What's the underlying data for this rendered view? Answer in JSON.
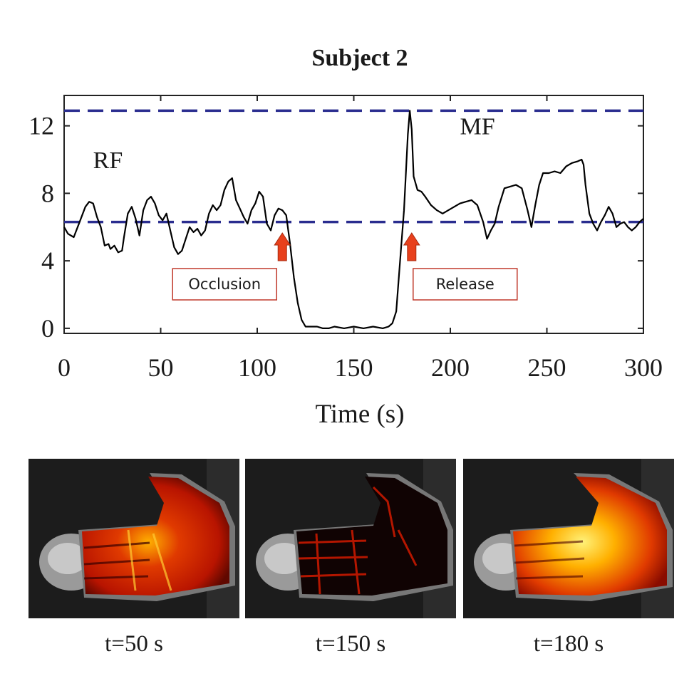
{
  "chart_data": {
    "type": "line",
    "title": "Subject 2",
    "xlabel": "Time (s)",
    "ylabel": "",
    "xlim": [
      0,
      300
    ],
    "ylim": [
      -0.3,
      13.8
    ],
    "xticks": [
      0,
      50,
      100,
      150,
      200,
      250,
      300
    ],
    "yticks": [
      0,
      4,
      8,
      12
    ],
    "grid": false,
    "series": [
      {
        "x": [
          0,
          2,
          5,
          8,
          11,
          13,
          15,
          17,
          19,
          21,
          23,
          24,
          26,
          28,
          30,
          31,
          33,
          35,
          37,
          39,
          41,
          43,
          45,
          47,
          49,
          51,
          53,
          55,
          57,
          59,
          61,
          63,
          65,
          67,
          69,
          71,
          73,
          75,
          77,
          79,
          81,
          83,
          85,
          87,
          89,
          91,
          93,
          95,
          97,
          99,
          101,
          103,
          105,
          107,
          109,
          111,
          113,
          115,
          117,
          119,
          121,
          123,
          125,
          128,
          131,
          134,
          137,
          140,
          145,
          150,
          155,
          160,
          165,
          168,
          170,
          172,
          174,
          176,
          178,
          179,
          180,
          181,
          183,
          185,
          187,
          190,
          193,
          196,
          199,
          202,
          205,
          208,
          211,
          214,
          217,
          219,
          221,
          223,
          225,
          228,
          231,
          234,
          237,
          240,
          242,
          244,
          246,
          248,
          251,
          254,
          257,
          260,
          263,
          266,
          268,
          269,
          270,
          272,
          274,
          276,
          278,
          280,
          282,
          284,
          286,
          288,
          290,
          292,
          294,
          296,
          298,
          300
        ],
        "y": [
          6.0,
          5.6,
          5.4,
          6.3,
          7.2,
          7.5,
          7.4,
          6.6,
          6.0,
          4.9,
          5.0,
          4.7,
          4.9,
          4.5,
          4.6,
          5.4,
          6.8,
          7.2,
          6.5,
          5.5,
          7.0,
          7.6,
          7.8,
          7.4,
          6.7,
          6.4,
          6.8,
          5.8,
          4.8,
          4.4,
          4.6,
          5.3,
          6.0,
          5.7,
          5.9,
          5.5,
          5.8,
          6.8,
          7.3,
          7.0,
          7.3,
          8.2,
          8.7,
          8.9,
          7.6,
          7.1,
          6.6,
          6.2,
          7.0,
          7.4,
          8.1,
          7.8,
          6.2,
          5.8,
          6.7,
          7.1,
          7.0,
          6.7,
          5.0,
          3.0,
          1.5,
          0.5,
          0.1,
          0.1,
          0.1,
          0.0,
          0.0,
          0.1,
          0.0,
          0.1,
          0.0,
          0.1,
          0.0,
          0.1,
          0.3,
          1.0,
          4.0,
          7.0,
          11.5,
          12.9,
          11.8,
          9.0,
          8.2,
          8.1,
          7.8,
          7.3,
          7.0,
          6.8,
          7.0,
          7.2,
          7.4,
          7.5,
          7.6,
          7.3,
          6.3,
          5.3,
          5.8,
          6.2,
          7.2,
          8.3,
          8.4,
          8.5,
          8.3,
          7.0,
          6.0,
          7.3,
          8.5,
          9.2,
          9.2,
          9.3,
          9.2,
          9.6,
          9.8,
          9.9,
          10.0,
          9.7,
          8.5,
          6.8,
          6.2,
          5.8,
          6.3,
          6.7,
          7.2,
          6.8,
          6.0,
          6.2,
          6.3,
          6.0,
          5.8,
          6.0,
          6.3,
          6.5
        ],
        "color": "#000000"
      }
    ],
    "reference_lines": [
      {
        "y": 12.9,
        "style": "dashed",
        "color": "#2a2d8f"
      },
      {
        "y": 6.3,
        "style": "dashed",
        "color": "#2a2d8f"
      }
    ],
    "annotations": [
      {
        "text": "RF",
        "x": 15,
        "y": 9.5
      },
      {
        "text": "MF",
        "x": 205,
        "y": 11.5
      }
    ],
    "events": [
      {
        "label": "Occlusion",
        "x": 113
      },
      {
        "label": "Release",
        "x": 180
      }
    ],
    "colors": {
      "line": "#000000",
      "reference": "#2a2d8f",
      "arrow": "#e8401c",
      "box": "#c0392b"
    }
  },
  "thermal_images": [
    {
      "caption": "t=50 s"
    },
    {
      "caption": "t=150 s"
    },
    {
      "caption": "t=180 s"
    }
  ]
}
